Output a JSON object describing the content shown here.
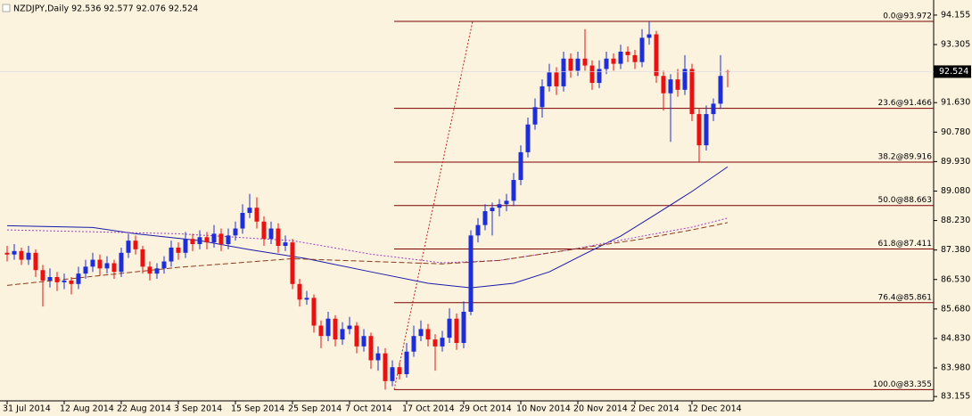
{
  "chart_data": {
    "type": "candlestick",
    "title": "NZDJPY,Daily  92.536 92.577 92.076 92.524",
    "categories": [
      "31 Jul 2014",
      null,
      null,
      null,
      null,
      null,
      null,
      null,
      "12 Aug 2014",
      null,
      null,
      null,
      null,
      null,
      null,
      null,
      "22 Aug 2014",
      null,
      null,
      null,
      null,
      null,
      null,
      null,
      "3 Sep 2014",
      null,
      null,
      null,
      null,
      null,
      null,
      null,
      "15 Sep 2014",
      null,
      null,
      null,
      null,
      null,
      null,
      null,
      "25 Sep 2014",
      null,
      null,
      null,
      null,
      null,
      null,
      null,
      "7 Oct 2014",
      null,
      null,
      null,
      null,
      null,
      null,
      null,
      "17 Oct 2014",
      null,
      null,
      null,
      null,
      null,
      null,
      null,
      "29 Oct 2014",
      null,
      null,
      null,
      null,
      null,
      null,
      null,
      "10 Nov 2014",
      null,
      null,
      null,
      null,
      null,
      null,
      null,
      "20 Nov 2014",
      null,
      null,
      null,
      null,
      null,
      null,
      null,
      "2 Dec 2014",
      null,
      null,
      null,
      null,
      null,
      null,
      null,
      "12 Dec 2014",
      null,
      null,
      null,
      null,
      null
    ],
    "open": [
      87.3,
      87.25,
      87.35,
      87.1,
      87.3,
      86.8,
      86.5,
      86.6,
      86.45,
      86.5,
      86.4,
      86.7,
      86.9,
      87.1,
      86.85,
      87.0,
      86.75,
      87.3,
      87.65,
      87.4,
      86.9,
      86.7,
      86.85,
      87.05,
      87.45,
      87.3,
      87.7,
      87.55,
      87.75,
      87.6,
      87.85,
      87.55,
      87.8,
      88.0,
      88.45,
      88.6,
      88.2,
      87.7,
      88.0,
      87.5,
      87.6,
      86.4,
      85.95,
      86.0,
      85.2,
      84.9,
      85.4,
      84.8,
      85.1,
      85.2,
      84.6,
      84.9,
      84.2,
      84.4,
      83.6,
      84.0,
      83.8,
      84.45,
      84.9,
      85.1,
      84.8,
      84.6,
      84.85,
      85.4,
      84.7,
      85.6,
      87.8,
      88.1,
      88.5,
      88.6,
      88.7,
      88.8,
      89.4,
      90.2,
      91.0,
      91.5,
      92.1,
      92.5,
      92.1,
      92.9,
      92.55,
      92.9,
      92.7,
      92.2,
      92.6,
      92.9,
      92.75,
      93.1,
      93.0,
      92.8,
      93.5,
      93.6,
      92.4,
      91.9,
      92.3,
      92.0,
      92.6,
      91.3,
      90.4,
      91.3,
      91.6,
      92.536
    ],
    "high": [
      87.5,
      87.55,
      87.45,
      87.5,
      87.4,
      86.95,
      86.85,
      86.75,
      86.7,
      86.6,
      86.9,
      87.1,
      87.3,
      87.25,
      87.2,
      87.1,
      87.45,
      87.85,
      87.8,
      87.5,
      87.05,
      87.0,
      87.2,
      87.65,
      87.6,
      87.9,
      87.85,
      87.95,
      87.9,
      88.1,
      88.0,
      88.0,
      88.2,
      88.7,
      89.0,
      88.9,
      88.35,
      88.2,
      88.15,
      87.8,
      87.7,
      86.55,
      86.2,
      86.1,
      85.35,
      85.6,
      85.5,
      85.3,
      85.45,
      85.3,
      85.1,
      85.0,
      84.6,
      84.55,
      84.2,
      84.15,
      84.7,
      85.2,
      85.35,
      85.25,
      84.95,
      85.05,
      85.7,
      85.55,
      85.9,
      87.95,
      88.3,
      88.7,
      88.75,
      88.85,
      89.0,
      89.6,
      90.4,
      91.2,
      91.75,
      92.3,
      92.75,
      92.65,
      93.1,
      93.05,
      93.1,
      93.75,
      92.85,
      92.85,
      93.1,
      93.05,
      93.3,
      93.25,
      93.15,
      93.75,
      93.972,
      93.7,
      92.55,
      92.45,
      92.6,
      93.0,
      92.75,
      91.45,
      91.55,
      91.75,
      93.0,
      92.577
    ],
    "low": [
      87.05,
      87.1,
      86.95,
      86.95,
      86.6,
      85.75,
      86.3,
      86.2,
      86.25,
      86.1,
      86.25,
      86.55,
      86.75,
      86.65,
      86.7,
      86.55,
      86.6,
      87.15,
      87.25,
      86.7,
      86.5,
      86.55,
      86.7,
      86.9,
      87.1,
      87.15,
      87.35,
      87.4,
      87.4,
      87.45,
      87.35,
      87.4,
      87.65,
      87.85,
      88.3,
      88.0,
      87.5,
      87.55,
      87.3,
      87.35,
      86.25,
      85.75,
      85.8,
      85.0,
      84.55,
      84.75,
      84.6,
      84.65,
      84.95,
      84.4,
      84.45,
      83.95,
      83.9,
      83.355,
      83.45,
      83.65,
      83.7,
      84.3,
      84.75,
      84.6,
      83.9,
      84.45,
      84.7,
      84.5,
      84.55,
      85.5,
      87.6,
      87.95,
      87.8,
      88.35,
      88.5,
      88.65,
      89.25,
      90.05,
      90.85,
      91.2,
      91.95,
      91.85,
      91.95,
      92.35,
      92.4,
      92.55,
      92.0,
      92.05,
      92.45,
      92.55,
      92.6,
      92.8,
      92.6,
      92.65,
      93.3,
      92.2,
      91.4,
      90.5,
      91.8,
      91.85,
      91.1,
      89.916,
      90.25,
      91.1,
      91.45,
      92.076
    ],
    "close": [
      87.25,
      87.35,
      87.1,
      87.3,
      86.8,
      86.5,
      86.6,
      86.45,
      86.5,
      86.4,
      86.7,
      86.9,
      87.1,
      86.85,
      87.0,
      86.75,
      87.3,
      87.65,
      87.4,
      86.9,
      86.7,
      86.85,
      87.05,
      87.45,
      87.3,
      87.7,
      87.55,
      87.75,
      87.6,
      87.85,
      87.55,
      87.8,
      88.0,
      88.45,
      88.6,
      88.2,
      87.7,
      88.0,
      87.5,
      87.6,
      86.4,
      85.95,
      86.0,
      85.2,
      84.9,
      85.4,
      84.8,
      85.1,
      85.2,
      84.6,
      84.9,
      84.2,
      84.4,
      83.6,
      84.0,
      83.8,
      84.45,
      84.9,
      85.1,
      84.8,
      84.6,
      84.85,
      85.4,
      84.7,
      85.6,
      87.8,
      88.1,
      88.5,
      88.6,
      88.7,
      88.8,
      89.4,
      90.2,
      91.0,
      91.5,
      92.1,
      92.5,
      92.1,
      92.9,
      92.55,
      92.9,
      92.7,
      92.2,
      92.6,
      92.9,
      92.75,
      93.1,
      93.0,
      92.8,
      93.5,
      93.6,
      92.4,
      91.9,
      92.3,
      92.0,
      92.6,
      91.3,
      90.4,
      91.3,
      91.6,
      92.4,
      92.524
    ],
    "up_color": "#1e2ed6",
    "down_color": "#e81212",
    "ma_lines": [
      {
        "color": "#1a1aa8",
        "dash": "none",
        "x": [
          0,
          12,
          18,
          27,
          34,
          42,
          51,
          59,
          65,
          71,
          76,
          81,
          86,
          91,
          96,
          101
        ],
        "values": [
          88.08,
          88.03,
          87.85,
          87.65,
          87.39,
          87.13,
          86.75,
          86.42,
          86.29,
          86.42,
          86.75,
          87.27,
          87.78,
          88.42,
          89.07,
          89.78
        ]
      },
      {
        "color": "#a040c8",
        "dash": "2 2",
        "x": [
          0,
          24,
          40,
          51,
          61,
          69,
          79,
          89,
          96,
          101
        ],
        "values": [
          87.96,
          87.85,
          87.65,
          87.26,
          87.01,
          87.08,
          87.39,
          87.78,
          88.04,
          88.3
        ]
      },
      {
        "color": "#8b3a1a",
        "dash": "6 3",
        "x": [
          0,
          24,
          40,
          51,
          61,
          69,
          79,
          89,
          96,
          101
        ],
        "values": [
          86.36,
          86.88,
          87.13,
          87.05,
          86.98,
          87.08,
          87.39,
          87.7,
          87.96,
          88.17
        ]
      }
    ],
    "fib_levels": [
      {
        "value": 93.972,
        "label": "0.0@93.972"
      },
      {
        "value": 91.466,
        "label": "23.6@91.466"
      },
      {
        "value": 89.916,
        "label": "38.2@89.916"
      },
      {
        "value": 88.663,
        "label": "50.0@88.663"
      },
      {
        "value": 87.411,
        "label": "61.8@87.411"
      },
      {
        "value": 85.861,
        "label": "76.4@85.861"
      },
      {
        "value": 83.355,
        "label": "100.0@83.355"
      }
    ],
    "fib_color": "#7a0000",
    "ylim": [
      83.03,
      94.59
    ],
    "yticks": [
      94.155,
      93.305,
      {
        "value": 91.63,
        "label": "91.630"
      },
      {
        "value": 90.78,
        "label": "90.780"
      },
      {
        "value": 89.93,
        "label": "89.930"
      },
      {
        "value": 89.08,
        "label": "89.080"
      },
      {
        "value": 88.23,
        "label": "88.230"
      },
      {
        "value": 87.38,
        "label": "87.380"
      },
      {
        "value": 86.53,
        "label": "86.530"
      },
      {
        "value": 85.68,
        "label": "85.680"
      },
      {
        "value": 84.83,
        "label": "84.830"
      },
      {
        "value": 83.98,
        "label": "83.980"
      },
      83.155
    ]
  }
}
